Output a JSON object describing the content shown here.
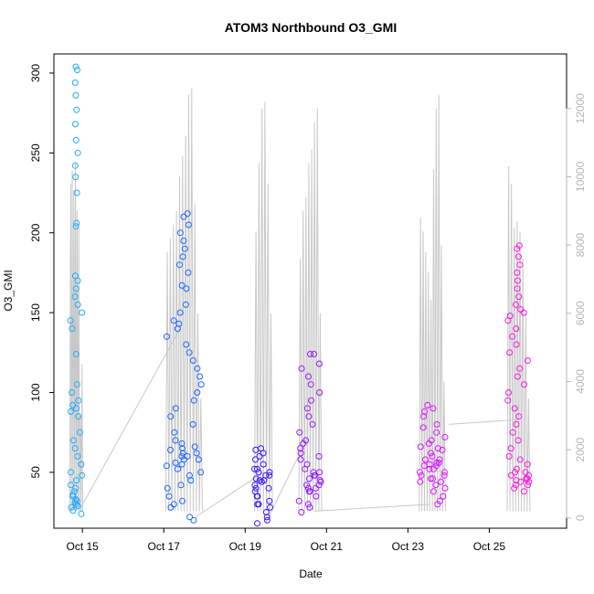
{
  "chart_data": {
    "type": "scatter",
    "title": "ATOM3 Northbound O3_GMI",
    "xlabel": "Date",
    "ylabel": "O3_GMI",
    "x_ticks": [
      "Oct 15",
      "Oct 17",
      "Oct 19",
      "Oct 21",
      "Oct 23",
      "Oct 25"
    ],
    "x_tick_days": [
      15,
      17,
      19,
      21,
      23,
      25
    ],
    "xlim": [
      14.3,
      26.9
    ],
    "ylim": [
      15,
      312
    ],
    "y_ticks": [
      50,
      100,
      150,
      200,
      250,
      300
    ],
    "y2_ticks": [
      0,
      2000,
      4000,
      6000,
      8000,
      10000,
      12000
    ],
    "y2lim": [
      -300,
      13600
    ],
    "altitude_color": "#c8c8c8",
    "connector_color": "#c8c8c8",
    "series": [
      {
        "color": "#1eaaff",
        "x_center": 14.85,
        "x_spread": 0.16,
        "values": [
          30,
          32,
          28,
          35,
          40,
          45,
          50,
          55,
          60,
          65,
          70,
          75,
          85,
          88,
          90,
          92,
          95,
          100,
          105,
          124,
          140,
          145,
          150,
          155,
          160,
          165,
          170,
          173,
          204,
          206,
          225,
          235,
          242,
          250,
          258,
          268,
          277,
          286,
          294,
          302,
          304,
          38,
          42,
          48,
          26,
          24,
          33,
          36,
          29,
          31
        ],
        "altitude_peaks": [
          9800,
          10200,
          9600,
          10400,
          9000,
          8500,
          3000,
          4500
        ]
      },
      {
        "color": "#1e64ff",
        "x_center": 17.5,
        "x_spread": 0.45,
        "values": [
          20,
          22,
          28,
          30,
          32,
          35,
          40,
          42,
          45,
          48,
          50,
          52,
          55,
          58,
          60,
          62,
          65,
          68,
          70,
          75,
          80,
          85,
          90,
          95,
          100,
          105,
          110,
          115,
          120,
          125,
          130,
          135,
          140,
          143,
          145,
          150,
          155,
          165,
          167,
          175,
          180,
          185,
          190,
          195,
          200,
          205,
          210,
          212,
          60,
          62,
          64,
          66,
          58,
          56,
          54
        ],
        "altitude_peaks": [
          7800,
          8200,
          8600,
          9000,
          10000,
          10600,
          11200,
          12400,
          12600,
          9200,
          6000,
          3500
        ]
      },
      {
        "color": "#3814ff",
        "x_center": 19.45,
        "x_spread": 0.22,
        "values": [
          18,
          20,
          22,
          25,
          28,
          30,
          32,
          35,
          38,
          40,
          42,
          45,
          48,
          50,
          52,
          55,
          58,
          60,
          62,
          64,
          65,
          50,
          45,
          40,
          35,
          30,
          52,
          48,
          46,
          44
        ],
        "altitude_peaks": [
          8400,
          10400,
          12000,
          12200,
          9800,
          6000
        ]
      },
      {
        "color": "#9618ff",
        "x_center": 20.6,
        "x_spread": 0.28,
        "values": [
          25,
          28,
          30,
          32,
          35,
          38,
          40,
          42,
          45,
          48,
          50,
          52,
          55,
          58,
          60,
          62,
          65,
          68,
          70,
          75,
          80,
          85,
          90,
          95,
          100,
          105,
          110,
          115,
          118,
          124,
          124,
          50,
          48,
          46,
          44,
          42,
          40,
          38
        ],
        "altitude_peaks": [
          7600,
          9000,
          9400,
          10400,
          10800,
          11600,
          12000,
          6000
        ]
      },
      {
        "color": "#dc14ff",
        "x_center": 23.6,
        "x_spread": 0.32,
        "values": [
          30,
          32,
          35,
          38,
          40,
          42,
          44,
          46,
          48,
          50,
          52,
          54,
          55,
          56,
          58,
          60,
          62,
          64,
          65,
          66,
          68,
          70,
          72,
          75,
          78,
          80,
          85,
          88,
          90,
          92,
          50,
          48,
          46,
          44,
          52,
          54,
          56,
          58
        ],
        "altitude_peaks": [
          8800,
          8400,
          7800,
          7200,
          6400,
          10200,
          12000,
          12400,
          8000,
          4000
        ]
      },
      {
        "color": "#ff14e6",
        "x_center": 25.72,
        "x_spread": 0.28,
        "values": [
          38,
          40,
          42,
          44,
          45,
          46,
          48,
          50,
          52,
          55,
          58,
          60,
          65,
          70,
          75,
          80,
          85,
          90,
          95,
          100,
          105,
          110,
          115,
          120,
          125,
          130,
          135,
          140,
          145,
          148,
          150,
          152,
          155,
          160,
          165,
          170,
          175,
          180,
          185,
          190,
          192,
          46,
          44,
          42,
          48,
          50
        ],
        "altitude_peaks": [
          10300,
          9800,
          8500,
          8700,
          8400,
          7600,
          6000,
          3500
        ]
      }
    ],
    "connectors": [
      {
        "x": [
          14.92,
          17.4
        ],
        "y": [
          26,
          140
        ]
      },
      {
        "x": [
          17.78,
          19.45
        ],
        "y": [
          22,
          50
        ]
      },
      {
        "x": [
          19.5,
          20.5
        ],
        "y": [
          18,
          70
        ]
      },
      {
        "x": [
          24.0,
          25.72
        ],
        "y": [
          80,
          83
        ]
      }
    ],
    "altitude_connectors": [
      {
        "x": [
          20.7,
          23.55
        ],
        "y2": [
          200,
          400
        ]
      }
    ]
  }
}
